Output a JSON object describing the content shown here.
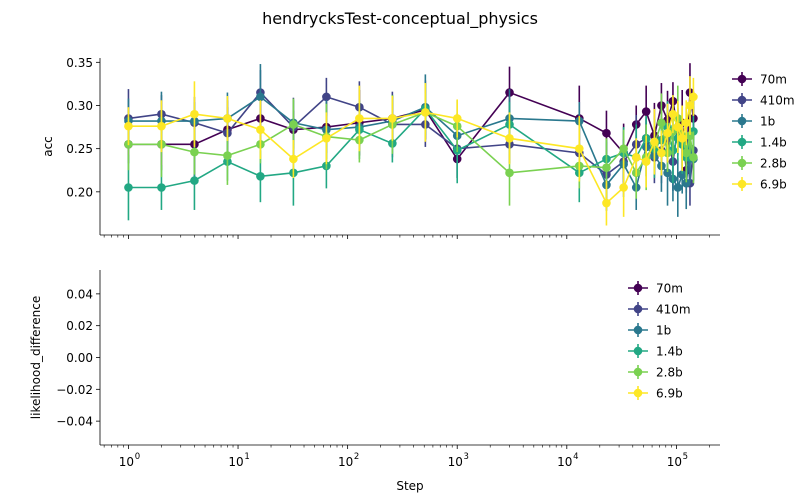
{
  "title": "hendrycksTest-conceptual_physics",
  "colors": {
    "70m": "#440154",
    "410m": "#414487",
    "1b": "#2a788e",
    "1.4b": "#22a884",
    "2.8b": "#7ad151",
    "6.9b": "#fde725"
  },
  "chart_data": [
    {
      "type": "line",
      "xlabel": "",
      "ylabel": "acc",
      "xscale": "log",
      "xlim": [
        0.55,
        250000
      ],
      "ylim": [
        0.15,
        0.355
      ],
      "yticks": [
        "0.20",
        "0.25",
        "0.30",
        "0.35"
      ],
      "ytick_values": [
        0.2,
        0.25,
        0.3,
        0.35
      ],
      "legend": "right-outside-top",
      "error_bars": true,
      "series": [
        {
          "name": "70m",
          "x": [
            1,
            2,
            4,
            8,
            16,
            32,
            64,
            128,
            256,
            512,
            1000,
            3000,
            13000,
            23000,
            33000,
            43000,
            53000,
            63000,
            73000,
            83000,
            93000,
            103000,
            113000,
            123000,
            133000,
            143000
          ],
          "y": [
            0.255,
            0.255,
            0.255,
            0.272,
            0.285,
            0.272,
            0.275,
            0.28,
            0.285,
            0.295,
            0.238,
            0.315,
            0.285,
            0.268,
            0.245,
            0.278,
            0.293,
            0.265,
            0.3,
            0.283,
            0.305,
            0.272,
            0.28,
            0.225,
            0.315,
            0.285
          ]
        },
        {
          "name": "410m",
          "x": [
            1,
            2,
            4,
            8,
            16,
            32,
            64,
            128,
            256,
            512,
            1000,
            3000,
            13000,
            23000,
            33000,
            43000,
            53000,
            63000,
            73000,
            83000,
            93000,
            103000,
            113000,
            123000,
            133000,
            143000
          ],
          "y": [
            0.285,
            0.29,
            0.28,
            0.268,
            0.315,
            0.275,
            0.31,
            0.298,
            0.278,
            0.278,
            0.25,
            0.255,
            0.245,
            0.22,
            0.235,
            0.255,
            0.262,
            0.24,
            0.248,
            0.262,
            0.235,
            0.275,
            0.255,
            0.26,
            0.21,
            0.248
          ]
        },
        {
          "name": "1b",
          "x": [
            1,
            2,
            4,
            8,
            16,
            32,
            64,
            128,
            256,
            512,
            1000,
            3000,
            13000,
            23000,
            33000,
            43000,
            53000,
            63000,
            73000,
            83000,
            93000,
            103000,
            113000,
            123000,
            133000,
            143000
          ],
          "y": [
            0.282,
            0.282,
            0.282,
            0.285,
            0.31,
            0.28,
            0.272,
            0.275,
            0.282,
            0.298,
            0.265,
            0.285,
            0.282,
            0.208,
            0.232,
            0.205,
            0.252,
            0.242,
            0.23,
            0.222,
            0.215,
            0.205,
            0.22,
            0.21,
            0.25,
            0.238
          ]
        },
        {
          "name": "1.4b",
          "x": [
            1,
            2,
            4,
            8,
            16,
            32,
            64,
            128,
            256,
            512,
            1000,
            3000,
            13000,
            23000,
            33000,
            43000,
            53000,
            63000,
            73000,
            83000,
            93000,
            103000,
            113000,
            123000,
            133000,
            143000
          ],
          "y": [
            0.205,
            0.205,
            0.213,
            0.235,
            0.218,
            0.222,
            0.23,
            0.272,
            0.256,
            0.296,
            0.248,
            0.278,
            0.222,
            0.238,
            0.245,
            0.24,
            0.262,
            0.25,
            0.26,
            0.275,
            0.248,
            0.262,
            0.255,
            0.24,
            0.265,
            0.27
          ]
        },
        {
          "name": "2.8b",
          "x": [
            1,
            2,
            4,
            8,
            16,
            32,
            64,
            128,
            256,
            512,
            1000,
            3000,
            13000,
            23000,
            33000,
            43000,
            53000,
            63000,
            73000,
            83000,
            93000,
            103000,
            113000,
            123000,
            133000,
            143000
          ],
          "y": [
            0.255,
            0.255,
            0.246,
            0.242,
            0.255,
            0.278,
            0.264,
            0.26,
            0.278,
            0.292,
            0.276,
            0.222,
            0.23,
            0.228,
            0.25,
            0.222,
            0.24,
            0.255,
            0.28,
            0.245,
            0.27,
            0.285,
            0.265,
            0.245,
            0.265,
            0.24
          ]
        },
        {
          "name": "6.9b",
          "x": [
            1,
            2,
            4,
            8,
            16,
            32,
            64,
            128,
            256,
            512,
            1000,
            3000,
            13000,
            23000,
            33000,
            43000,
            53000,
            63000,
            73000,
            83000,
            93000,
            103000,
            113000,
            123000,
            133000,
            143000
          ],
          "y": [
            0.276,
            0.276,
            0.29,
            0.285,
            0.272,
            0.238,
            0.262,
            0.285,
            0.285,
            0.292,
            0.285,
            0.262,
            0.25,
            0.187,
            0.205,
            0.24,
            0.235,
            0.258,
            0.245,
            0.268,
            0.29,
            0.275,
            0.262,
            0.28,
            0.3,
            0.31
          ]
        }
      ]
    },
    {
      "type": "line",
      "xlabel": "Step",
      "ylabel": "likelihood_difference",
      "xscale": "log",
      "xlim": [
        0.55,
        250000
      ],
      "ylim": [
        -0.055,
        0.055
      ],
      "yticks": [
        "−0.04",
        "−0.02",
        "0.00",
        "0.02",
        "0.04"
      ],
      "ytick_values": [
        -0.04,
        -0.02,
        0.0,
        0.02,
        0.04
      ],
      "xticks": [
        "10",
        "10",
        "10",
        "10",
        "10",
        "10"
      ],
      "xtick_exponents": [
        "0",
        "1",
        "2",
        "3",
        "4",
        "5"
      ],
      "xtick_values": [
        1,
        10,
        100,
        1000,
        10000,
        100000
      ],
      "legend": "upper-right",
      "series": [
        {
          "name": "70m",
          "x": [],
          "y": []
        },
        {
          "name": "410m",
          "x": [],
          "y": []
        },
        {
          "name": "1b",
          "x": [],
          "y": []
        },
        {
          "name": "1.4b",
          "x": [],
          "y": []
        },
        {
          "name": "2.8b",
          "x": [],
          "y": []
        },
        {
          "name": "6.9b",
          "x": [],
          "y": []
        }
      ]
    }
  ]
}
